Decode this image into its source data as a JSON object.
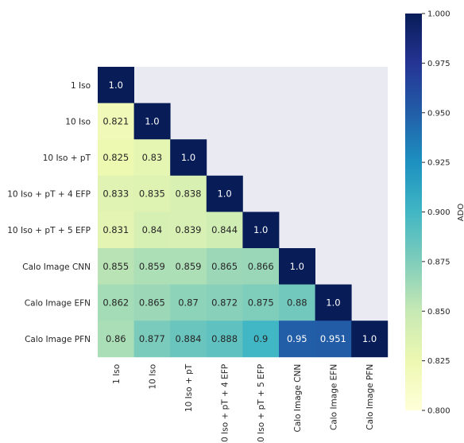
{
  "chart_data": {
    "type": "heatmap",
    "row_labels": [
      "1 Iso",
      "10 Iso",
      "10 Iso + pT",
      "10 Iso + pT + 4 EFP",
      "10 Iso + pT + 5 EFP",
      "Calo Image CNN",
      "Calo Image EFN",
      "Calo Image PFN"
    ],
    "col_labels": [
      "1 Iso",
      "10 Iso",
      "10 Iso + pT",
      "10 Iso + pT + 4 EFP",
      "10 Iso + pT + 5 EFP",
      "Calo Image CNN",
      "Calo Image EFN",
      "Calo Image PFN"
    ],
    "values": [
      [
        1.0
      ],
      [
        0.821,
        1.0
      ],
      [
        0.825,
        0.83,
        1.0
      ],
      [
        0.833,
        0.835,
        0.838,
        1.0
      ],
      [
        0.831,
        0.84,
        0.839,
        0.844,
        1.0
      ],
      [
        0.855,
        0.859,
        0.859,
        0.865,
        0.866,
        1.0
      ],
      [
        0.862,
        0.865,
        0.87,
        0.872,
        0.875,
        0.88,
        1.0
      ],
      [
        0.86,
        0.877,
        0.884,
        0.888,
        0.9,
        0.95,
        0.951,
        1.0
      ]
    ],
    "cell_labels": [
      [
        "1.0"
      ],
      [
        "0.821",
        "1.0"
      ],
      [
        "0.825",
        "0.83",
        "1.0"
      ],
      [
        "0.833",
        "0.835",
        "0.838",
        "1.0"
      ],
      [
        "0.831",
        "0.84",
        "0.839",
        "0.844",
        "1.0"
      ],
      [
        "0.855",
        "0.859",
        "0.859",
        "0.865",
        "0.866",
        "1.0"
      ],
      [
        "0.862",
        "0.865",
        "0.87",
        "0.872",
        "0.875",
        "0.88",
        "1.0"
      ],
      [
        "0.86",
        "0.877",
        "0.884",
        "0.888",
        "0.9",
        "0.95",
        "0.951",
        "1.0"
      ]
    ],
    "colorbar": {
      "label": "ADO",
      "range": [
        0.8,
        1.0
      ],
      "ticks": [
        "1.000",
        "0.975",
        "0.950",
        "0.925",
        "0.900",
        "0.875",
        "0.850",
        "0.825",
        "0.800"
      ],
      "colormap": "YlGnBu"
    },
    "background_color": "#eaeaf2",
    "colormap_stops": [
      "#ffffd9",
      "#edf8b1",
      "#c7e9b4",
      "#7fcdbb",
      "#41b6c4",
      "#1d91c0",
      "#225ea8",
      "#253494",
      "#081d58"
    ]
  }
}
